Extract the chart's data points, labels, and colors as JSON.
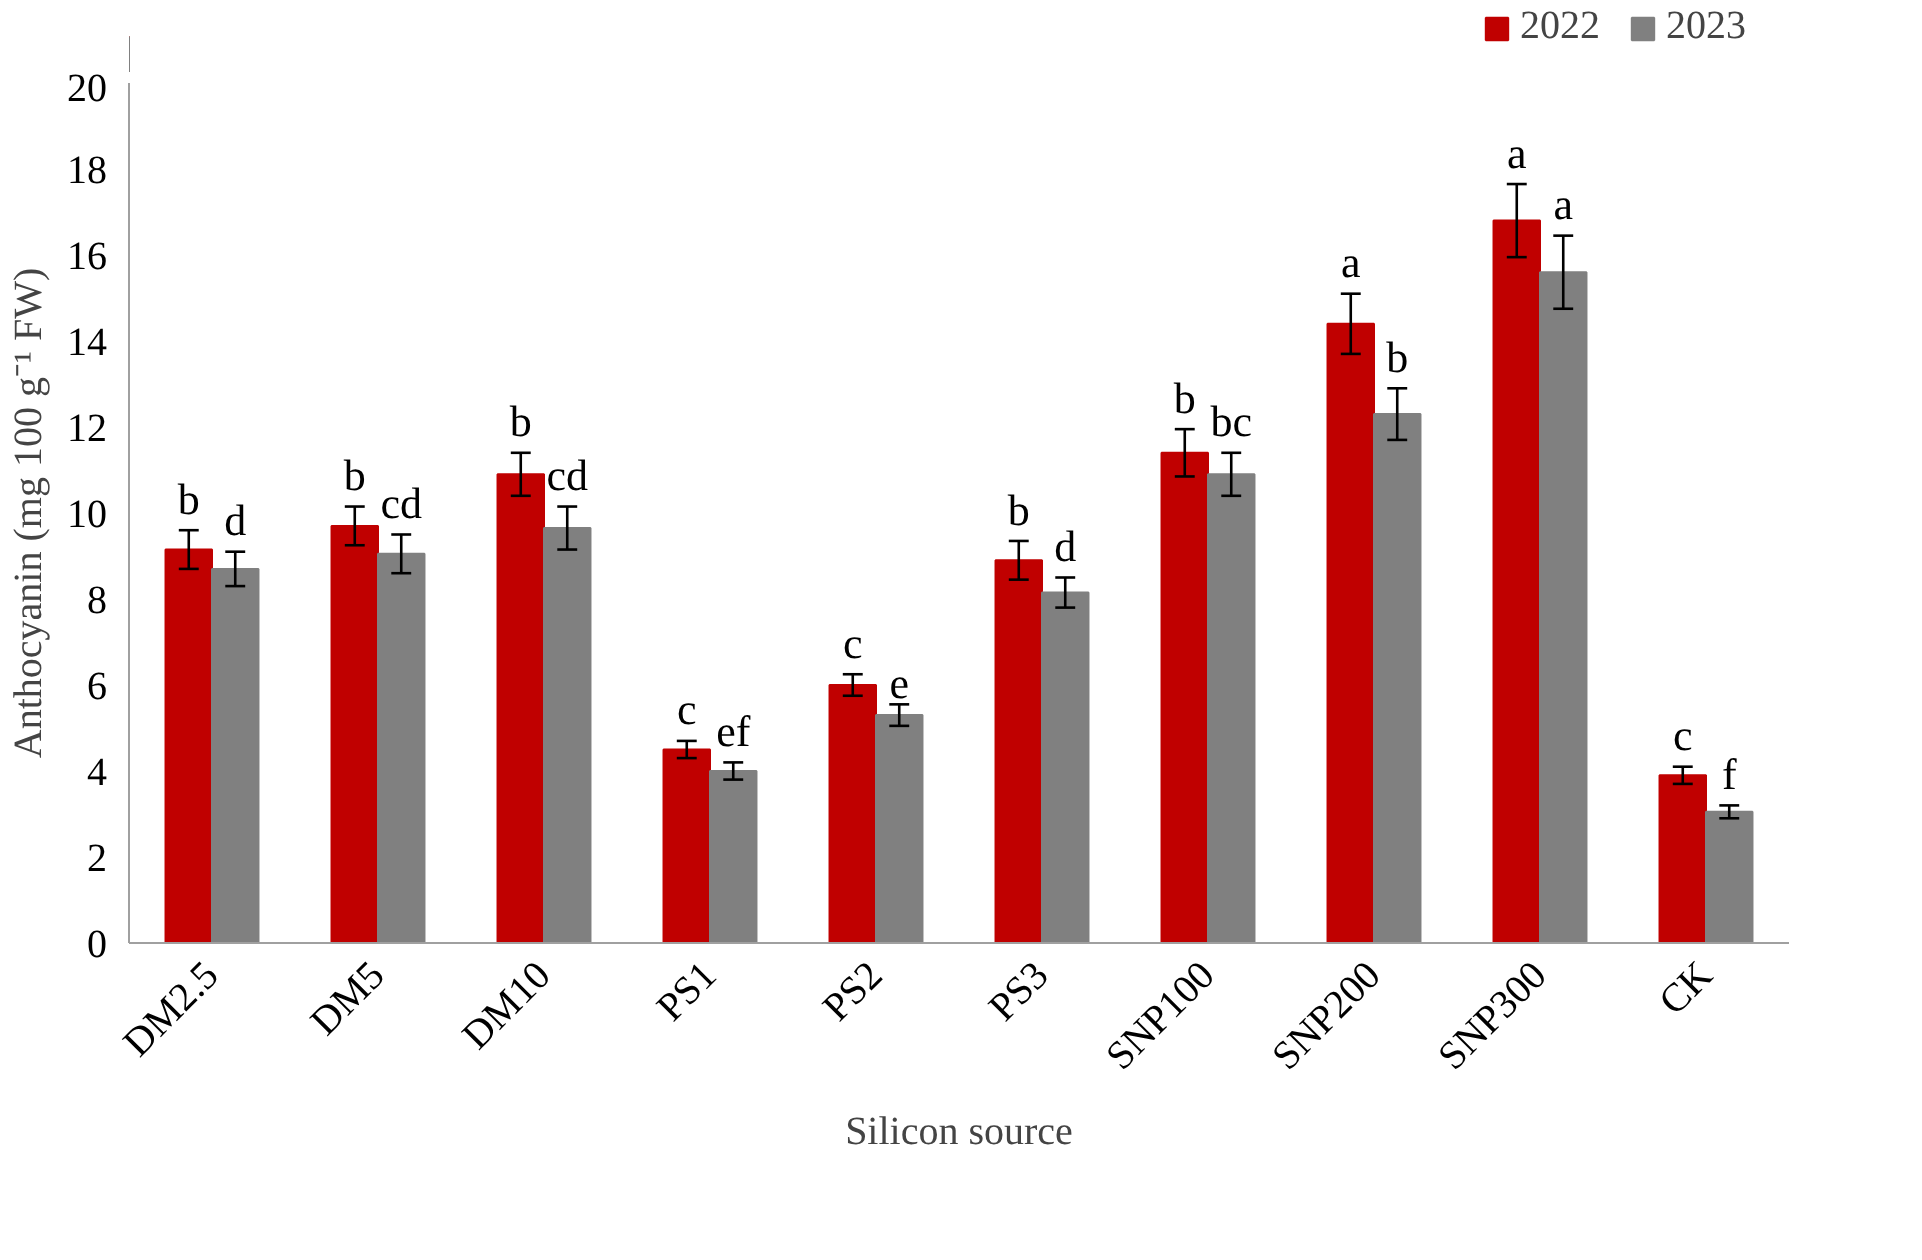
{
  "chart_data": {
    "type": "bar",
    "xlabel": "Silicon source",
    "ylabel": "Anthocyanin (mg 100 g⁻¹ FW)",
    "categories": [
      "DM2.5",
      "DM5",
      "DM10",
      "PS1",
      "PS2",
      "PS3",
      "SNP100",
      "SNP200",
      "SNP300",
      "CK"
    ],
    "series": [
      {
        "name": "2022",
        "color": "#c00000",
        "values": [
          9.15,
          9.7,
          10.9,
          4.5,
          6.0,
          8.9,
          11.4,
          14.4,
          16.8,
          3.9
        ],
        "errors": [
          0.45,
          0.45,
          0.5,
          0.2,
          0.25,
          0.45,
          0.55,
          0.7,
          0.85,
          0.2
        ],
        "value_labels": [
          "b",
          "b",
          "b",
          "c",
          "c",
          "b",
          "b",
          "a",
          "a",
          "c"
        ]
      },
      {
        "name": "2023",
        "color": "#808080",
        "values": [
          8.7,
          9.05,
          9.65,
          4.0,
          5.3,
          8.15,
          10.9,
          12.3,
          15.6,
          3.05
        ],
        "errors": [
          0.4,
          0.45,
          0.5,
          0.2,
          0.25,
          0.35,
          0.5,
          0.6,
          0.85,
          0.15
        ],
        "value_labels": [
          "d",
          "cd",
          "cd",
          "ef",
          "e",
          "d",
          "bc",
          "b",
          "a",
          "f"
        ]
      }
    ],
    "ylim": [
      0,
      20
    ],
    "yticks": [
      0,
      2,
      4,
      6,
      8,
      10,
      12,
      14,
      16,
      18,
      20
    ],
    "grid": false,
    "legend": "top right"
  }
}
